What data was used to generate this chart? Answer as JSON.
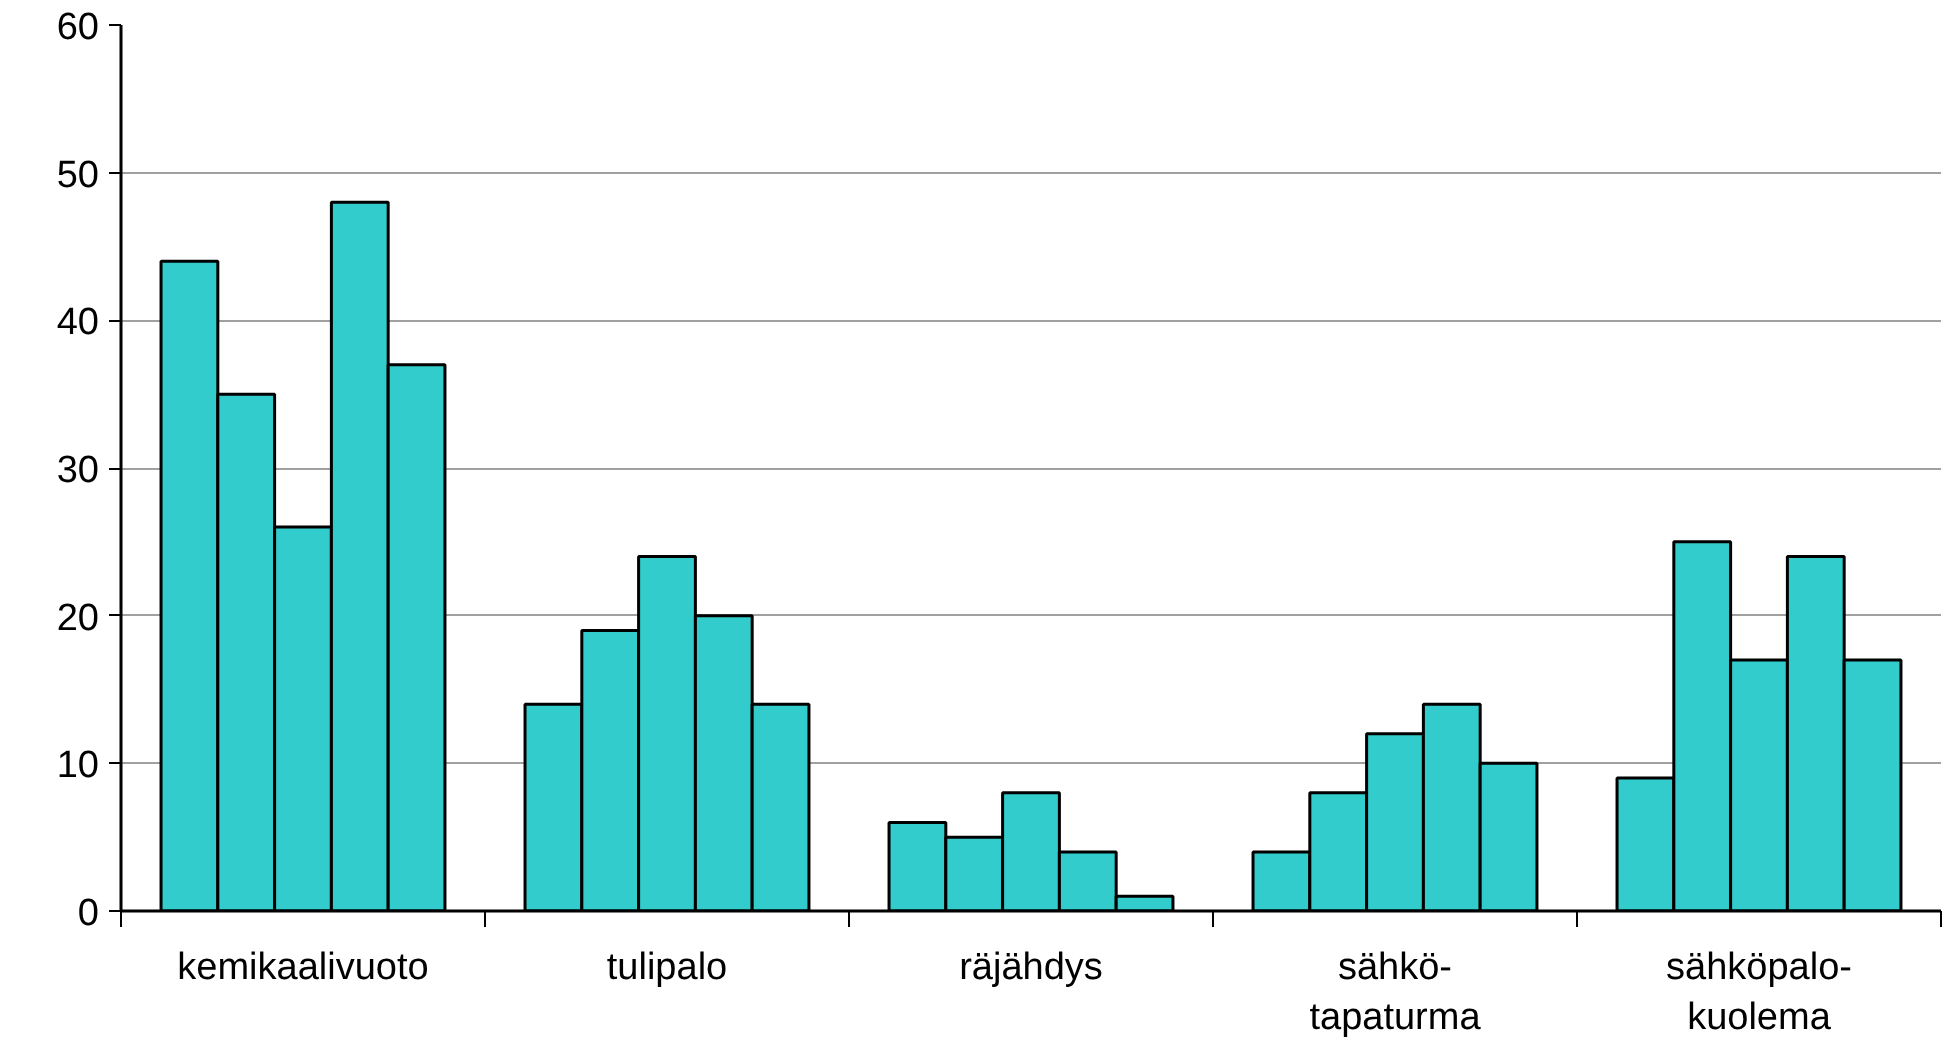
{
  "chart_data": {
    "type": "bar",
    "categories": [
      "kemikaalivuoto",
      "tulipalo",
      "räjähdys",
      "sähkö-\ntapaturma",
      "sähköpalo-\nkuolema"
    ],
    "series": [
      {
        "color": "#33cccc",
        "values": [
          44,
          14,
          6,
          4,
          9
        ]
      },
      {
        "color": "#33cccc",
        "values": [
          35,
          19,
          5,
          8,
          25
        ]
      },
      {
        "color": "#33cccc",
        "values": [
          26,
          24,
          8,
          12,
          17
        ]
      },
      {
        "color": "#33cccc",
        "values": [
          48,
          20,
          4,
          14,
          24
        ]
      },
      {
        "color": "#33cccc",
        "values": [
          37,
          14,
          1,
          10,
          17
        ]
      }
    ],
    "ylim": [
      0,
      60
    ],
    "yticks": [
      0,
      10,
      20,
      30,
      40,
      50,
      60
    ],
    "grid": "y"
  }
}
